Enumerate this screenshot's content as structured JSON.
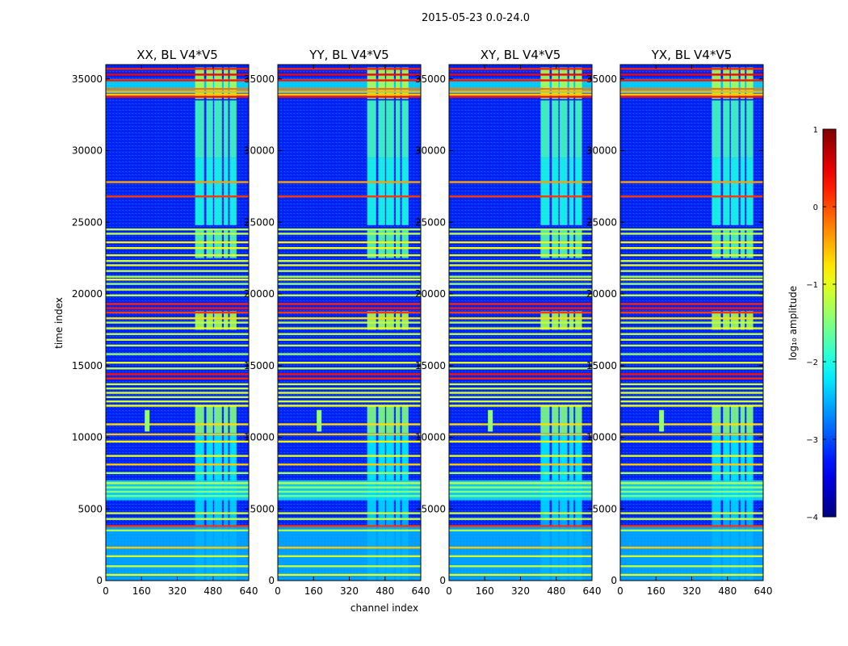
{
  "chart_data": {
    "type": "heatmap",
    "suptitle": "2015-05-23 0.0-24.0",
    "xlabel": "channel index",
    "ylabel": "time index",
    "xlim": [
      0,
      640
    ],
    "ylim": [
      0,
      36000
    ],
    "x_ticks": [
      0,
      160,
      320,
      480,
      640
    ],
    "y_ticks": [
      0,
      5000,
      10000,
      15000,
      20000,
      25000,
      30000,
      35000
    ],
    "panels": [
      {
        "title": "XX, BL V4*V5",
        "y_tick_labels": [
          "0",
          "5000",
          "10000",
          "15000",
          "20000",
          "25000",
          "30000",
          "35000"
        ]
      },
      {
        "title": "YY, BL V4*V5",
        "y_tick_labels": [
          "0",
          "5000",
          "10000",
          "15000",
          "20000",
          "25000",
          "30000",
          "35000"
        ]
      },
      {
        "title": "XY, BL V4*V5",
        "y_tick_labels": [
          "0",
          "5000",
          "10000",
          "15000",
          "20000",
          "25000",
          "30000",
          "35000"
        ]
      },
      {
        "title": "YX, BL V4*V5",
        "y_tick_labels": [
          "0",
          "5000",
          "10000",
          "15000",
          "20000",
          "25000",
          "30000",
          "35000"
        ]
      }
    ],
    "colorbar": {
      "label": "log₁₀ amplitude",
      "range": [
        -4,
        1
      ],
      "ticks": [
        -4,
        -3,
        -2,
        -1,
        0,
        1
      ],
      "tick_labels": [
        "−4",
        "−3",
        "−2",
        "−1",
        "0",
        "1"
      ],
      "colormap": [
        "#00007f",
        "#0000ff",
        "#007fff",
        "#00ffff",
        "#7fff7f",
        "#ffff00",
        "#ff7f00",
        "#ff0000",
        "#7f0000"
      ]
    },
    "background_value": -3.2,
    "bright_channel_band": [
      400,
      580
    ],
    "bright_channel_band_rfi_pol": [
      410,
      590
    ],
    "band_columns": [
      {
        "x0": 400,
        "x1": 440
      },
      {
        "x0": 450,
        "x1": 480
      },
      {
        "x0": 485,
        "x1": 520
      },
      {
        "x0": 528,
        "x1": 548
      },
      {
        "x0": 555,
        "x1": 585
      }
    ],
    "flagged_rows": [
      {
        "t": 35700,
        "v": 0.2
      },
      {
        "t": 35300,
        "v": 0.4
      },
      {
        "t": 34900,
        "v": 0.3
      },
      {
        "t": 34300,
        "v": -0.2
      },
      {
        "t": 34100,
        "v": -0.5
      },
      {
        "t": 33900,
        "v": -0.6
      },
      {
        "t": 33750,
        "v": 0.3
      },
      {
        "t": 27800,
        "v": -0.4
      },
      {
        "t": 26800,
        "v": 0.1
      },
      {
        "t": 24500,
        "v": -1.2
      },
      {
        "t": 24200,
        "v": -1.2
      },
      {
        "t": 23600,
        "v": -0.8
      },
      {
        "t": 23200,
        "v": -0.9
      },
      {
        "t": 22700,
        "v": -1.0
      },
      {
        "t": 22300,
        "v": -1.1
      },
      {
        "t": 22000,
        "v": -1.0
      },
      {
        "t": 21600,
        "v": -1.2
      },
      {
        "t": 21200,
        "v": -1.3
      },
      {
        "t": 21000,
        "v": -0.9
      },
      {
        "t": 20700,
        "v": -1.4
      },
      {
        "t": 20300,
        "v": -1.1
      },
      {
        "t": 19900,
        "v": -1.2
      },
      {
        "t": 19300,
        "v": 0.2
      },
      {
        "t": 19000,
        "v": 0.3
      },
      {
        "t": 18700,
        "v": 0.1
      },
      {
        "t": 18300,
        "v": -0.7
      },
      {
        "t": 18000,
        "v": -1.2
      },
      {
        "t": 17600,
        "v": -1.0
      },
      {
        "t": 17200,
        "v": -1.2
      },
      {
        "t": 16800,
        "v": -1.1
      },
      {
        "t": 16400,
        "v": -1.2
      },
      {
        "t": 15800,
        "v": -1.4
      },
      {
        "t": 15200,
        "v": -1.0
      },
      {
        "t": 14800,
        "v": -1.2
      },
      {
        "t": 14400,
        "v": 0.3
      },
      {
        "t": 14100,
        "v": 0.2
      },
      {
        "t": 13700,
        "v": -1.1
      },
      {
        "t": 13400,
        "v": -1.2
      },
      {
        "t": 13100,
        "v": -1.0
      },
      {
        "t": 12800,
        "v": -1.2
      },
      {
        "t": 12500,
        "v": -1.1
      },
      {
        "t": 12200,
        "v": -0.9
      },
      {
        "t": 10900,
        "v": -0.7
      },
      {
        "t": 10200,
        "v": -0.6
      },
      {
        "t": 9700,
        "v": -0.8
      },
      {
        "t": 8700,
        "v": -1.0
      },
      {
        "t": 8100,
        "v": -0.6
      },
      {
        "t": 7500,
        "v": -1.3
      },
      {
        "t": 6800,
        "v": -1.2
      },
      {
        "t": 6500,
        "v": -1.4
      },
      {
        "t": 6200,
        "v": -1.5
      },
      {
        "t": 5900,
        "v": -1.6
      },
      {
        "t": 4700,
        "v": -1.1
      },
      {
        "t": 4300,
        "v": -1.2
      },
      {
        "t": 3800,
        "v": 0.1
      },
      {
        "t": 3500,
        "v": -1.3
      },
      {
        "t": 2300,
        "v": -0.6
      },
      {
        "t": 1700,
        "v": -1.1
      },
      {
        "t": 1000,
        "v": -1.2
      },
      {
        "t": 400,
        "v": -1.0
      }
    ],
    "elevated_bands": [
      {
        "t0": 34000,
        "t1": 35000,
        "v": -2.1
      },
      {
        "t0": 5600,
        "t1": 7000,
        "v": -2.0
      },
      {
        "t0": 0,
        "t1": 3800,
        "v": -2.4
      }
    ],
    "band_activity_blocks": [
      {
        "t0": 33600,
        "t1": 35800,
        "v": -1.3
      },
      {
        "t0": 29500,
        "t1": 33500,
        "v": -1.8
      },
      {
        "t0": 24800,
        "t1": 29500,
        "v": -2.0
      },
      {
        "t0": 22500,
        "t1": 24500,
        "v": -1.7
      },
      {
        "t0": 17500,
        "t1": 18800,
        "v": -1.3
      },
      {
        "t0": 10300,
        "t1": 12200,
        "v": -1.5
      },
      {
        "t0": 7000,
        "t1": 10300,
        "v": -2.2
      },
      {
        "t0": 4200,
        "t1": 7000,
        "v": -2.3
      },
      {
        "t0": 0,
        "t1": 4200,
        "v": -2.5
      }
    ],
    "rfi_spot": {
      "channel": 185,
      "t0": 10400,
      "t1": 11900,
      "v": -1.4
    }
  }
}
